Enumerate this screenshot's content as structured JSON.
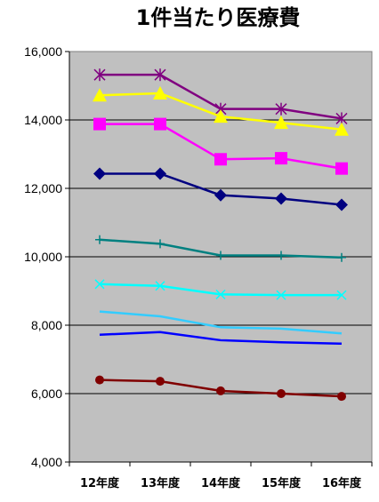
{
  "chart_data": {
    "type": "line",
    "title": "1件当たり医療費",
    "xlabel": "",
    "ylabel": "",
    "categories": [
      "12年度",
      "13年度",
      "14年度",
      "15年度",
      "16年度"
    ],
    "ylim": [
      4000,
      16000
    ],
    "yticks": [
      4000,
      6000,
      8000,
      10000,
      12000,
      14000,
      16000
    ],
    "ytick_labels": [
      "4,000",
      "6,000",
      "8,000",
      "10,000",
      "12,000",
      "14,000",
      "16,000"
    ],
    "grid": "horizontal",
    "legend": "none",
    "plot_background": "#c0c0c0",
    "series": [
      {
        "color": "#800080",
        "marker": "star",
        "values": [
          15320,
          15320,
          14320,
          14320,
          14040
        ]
      },
      {
        "color": "#ffff00",
        "marker": "triangle",
        "values": [
          14720,
          14780,
          14100,
          13920,
          13720
        ]
      },
      {
        "color": "#ff00ff",
        "marker": "square",
        "values": [
          13880,
          13880,
          12850,
          12880,
          12580
        ]
      },
      {
        "color": "#000080",
        "marker": "diamond",
        "values": [
          12430,
          12430,
          11800,
          11700,
          11520
        ]
      },
      {
        "color": "#008080",
        "marker": "plus",
        "values": [
          10500,
          10380,
          10040,
          10040,
          9980
        ]
      },
      {
        "color": "#00ffff",
        "marker": "x",
        "values": [
          9200,
          9150,
          8900,
          8880,
          8880
        ]
      },
      {
        "color": "#33ccff",
        "marker": "none",
        "values": [
          8400,
          8260,
          7940,
          7900,
          7760
        ]
      },
      {
        "color": "#0000ff",
        "marker": "none",
        "values": [
          7720,
          7800,
          7560,
          7500,
          7460
        ]
      },
      {
        "color": "#800000",
        "marker": "circle",
        "values": [
          6400,
          6360,
          6080,
          6000,
          5920
        ]
      }
    ]
  }
}
